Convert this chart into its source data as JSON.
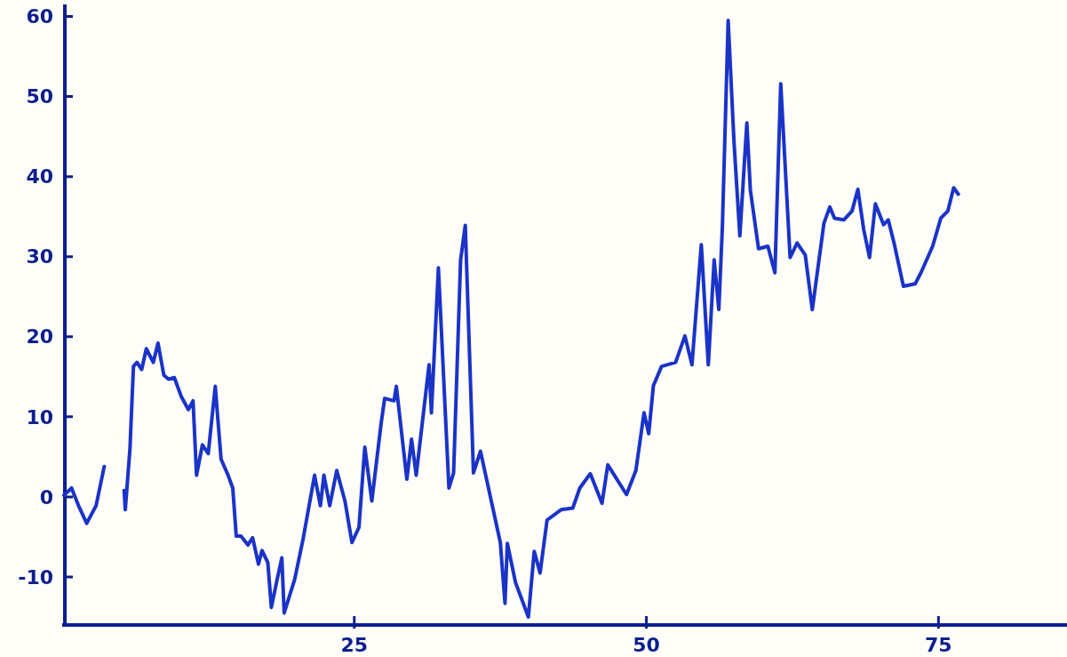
{
  "chart_data": {
    "type": "line",
    "x": [
      0.15,
      0.8,
      1.4,
      2.1,
      2.9,
      3.6,
      4.5,
      5.3,
      5.4,
      5.8,
      6.1,
      6.4,
      6.8,
      7.2,
      7.8,
      8.2,
      8.7,
      9.1,
      9.6,
      10.2,
      10.8,
      11.2,
      11.5,
      12.0,
      12.5,
      13.1,
      13.6,
      14.2,
      14.6,
      14.9,
      15.3,
      15.9,
      16.3,
      16.8,
      17.1,
      17.6,
      17.9,
      18.4,
      18.8,
      19.0,
      19.9,
      20.6,
      21.6,
      22.1,
      22.4,
      22.9,
      23.5,
      24.2,
      24.8,
      25.4,
      25.9,
      26.5,
      27.3,
      27.6,
      28.4,
      28.6,
      29.5,
      29.9,
      30.3,
      31.4,
      31.6,
      32.2,
      33.1,
      33.5,
      34.1,
      34.5,
      35.2,
      35.8,
      37.5,
      37.9,
      38.1,
      38.8,
      39.9,
      40.4,
      40.9,
      41.5,
      42.7,
      43.7,
      44.3,
      45.2,
      46.2,
      46.7,
      48.3,
      49.1,
      49.8,
      50.2,
      50.6,
      51.3,
      52.5,
      53.3,
      53.9,
      54.7,
      55.3,
      55.8,
      56.2,
      56.5,
      57.0,
      57.5,
      58.0,
      58.6,
      58.9,
      59.6,
      60.4,
      61.0,
      61.5,
      62.3,
      62.9,
      63.6,
      64.2,
      65.2,
      65.7,
      66.1,
      66.9,
      67.6,
      68.1,
      68.6,
      69.1,
      69.6,
      70.3,
      70.7,
      71.2,
      72.0,
      73.0,
      73.5,
      74.5,
      75.2,
      75.8,
      76.3,
      76.7
    ],
    "values": [
      0.2,
      1.1,
      -1.1,
      -3.3,
      -1.1,
      3.8,
      null,
      0.8,
      -1.6,
      6.0,
      16.3,
      16.8,
      15.9,
      18.5,
      16.8,
      19.2,
      15.2,
      14.7,
      14.9,
      12.5,
      10.9,
      12.0,
      2.7,
      6.5,
      5.4,
      13.8,
      4.7,
      2.7,
      1.1,
      -4.9,
      -4.9,
      -6.0,
      -5.1,
      -8.4,
      -6.7,
      -8.2,
      -13.8,
      -10.3,
      -7.6,
      -14.5,
      -10.3,
      -5.4,
      2.7,
      -1.1,
      2.7,
      -1.1,
      3.3,
      -0.5,
      -5.7,
      -3.8,
      6.2,
      -0.5,
      9.2,
      12.3,
      12.0,
      13.8,
      2.2,
      7.2,
      2.7,
      16.5,
      10.5,
      28.6,
      1.1,
      3.0,
      29.6,
      33.9,
      3.0,
      5.7,
      -5.7,
      -13.3,
      -5.8,
      -10.7,
      -15.0,
      -6.8,
      -9.5,
      -2.9,
      -1.6,
      -1.4,
      1.1,
      2.9,
      -0.8,
      4.0,
      0.3,
      3.3,
      10.5,
      7.9,
      13.9,
      16.3,
      16.8,
      20.1,
      16.5,
      31.5,
      16.5,
      29.6,
      23.4,
      33.5,
      59.5,
      44.3,
      32.6,
      46.7,
      38.3,
      31.0,
      31.3,
      28.0,
      51.6,
      29.9,
      31.7,
      30.2,
      23.4,
      34.2,
      36.2,
      34.8,
      34.6,
      35.7,
      38.4,
      33.4,
      29.9,
      36.6,
      34.0,
      34.6,
      31.7,
      26.3,
      26.6,
      28.0,
      31.3,
      34.8,
      35.7,
      38.6,
      37.8
    ],
    "color": "#1a33c8",
    "xlim": [
      0,
      86
    ],
    "ylim": [
      -16,
      61.5
    ],
    "xticks": [
      25,
      50,
      75
    ],
    "yticks": [
      -10,
      0,
      10,
      20,
      30,
      40,
      50,
      60
    ],
    "line_style": "solid",
    "marker": "none",
    "grid": false
  }
}
